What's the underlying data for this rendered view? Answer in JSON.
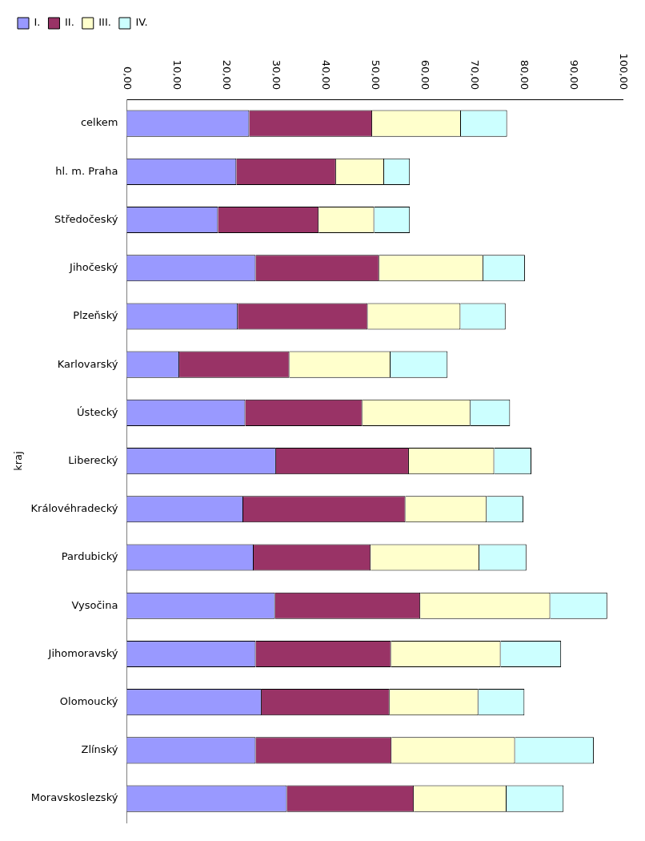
{
  "chart_data": {
    "type": "bar",
    "orientation": "horizontal",
    "stacked": true,
    "ylabel": "kraj",
    "categories": [
      "celkem",
      "hl. m. Praha",
      "Středočeský",
      "Jihočeský",
      "Plzeňský",
      "Karlovarský",
      "Ústecký",
      "Liberecký",
      "Královéhradecký",
      "Pardubický",
      "Vysočina",
      "Jihomoravský",
      "Olomoucký",
      "Zlínský",
      "Moravskoslezský"
    ],
    "series": [
      {
        "name": "I.",
        "color": "#9999ff",
        "values": [
          24.7,
          22.1,
          18.4,
          26.0,
          22.4,
          10.6,
          23.9,
          30.1,
          23.5,
          25.6,
          29.9,
          26.0,
          27.2,
          26.0,
          32.3
        ]
      },
      {
        "name": "II.",
        "color": "#993366",
        "values": [
          24.8,
          20.1,
          20.3,
          24.9,
          26.2,
          22.2,
          23.6,
          26.8,
          32.7,
          23.6,
          29.3,
          27.3,
          25.8,
          27.4,
          25.6
        ]
      },
      {
        "name": "III.",
        "color": "#ffffcc",
        "values": [
          17.9,
          9.7,
          11.2,
          21.0,
          18.7,
          20.4,
          21.8,
          17.2,
          16.4,
          21.9,
          26.2,
          22.1,
          17.9,
          24.9,
          18.7
        ]
      },
      {
        "name": "IV.",
        "color": "#ccffff",
        "values": [
          9.3,
          5.2,
          7.2,
          8.4,
          9.1,
          11.5,
          8.0,
          7.5,
          7.4,
          9.5,
          11.5,
          12.2,
          9.3,
          15.9,
          11.5
        ]
      }
    ],
    "xlim": [
      0,
      100
    ],
    "xticks": [
      {
        "value": 0,
        "label": "0,00"
      },
      {
        "value": 10,
        "label": "10,00"
      },
      {
        "value": 20,
        "label": "20,00"
      },
      {
        "value": 30,
        "label": "30,00"
      },
      {
        "value": 40,
        "label": "40,00"
      },
      {
        "value": 50,
        "label": "50,00"
      },
      {
        "value": 60,
        "label": "60,00"
      },
      {
        "value": 70,
        "label": "70,00"
      },
      {
        "value": 80,
        "label": "80,00"
      },
      {
        "value": 90,
        "label": "90,00"
      },
      {
        "value": 100,
        "label": "100,00"
      }
    ],
    "grid": false,
    "legend": "top left"
  }
}
